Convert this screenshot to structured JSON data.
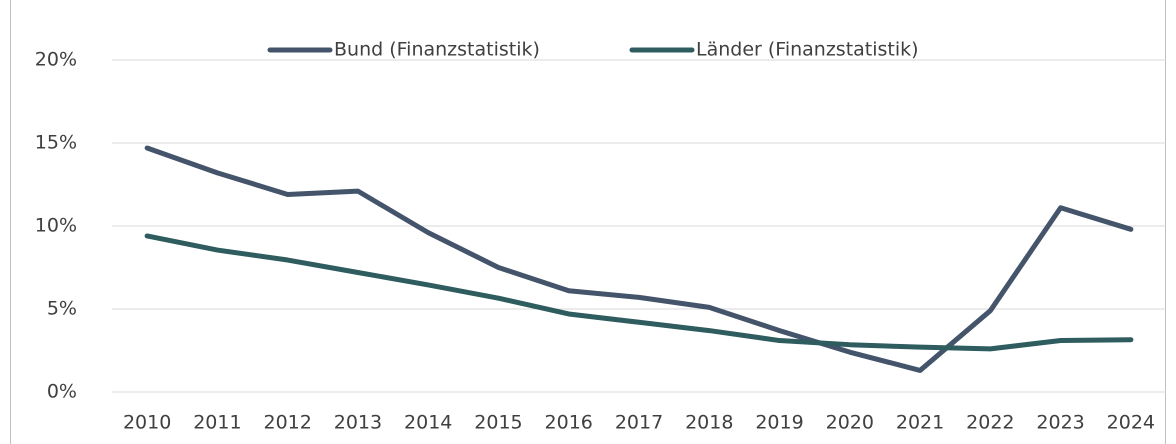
{
  "chart_data": {
    "type": "line",
    "categories": [
      "2010",
      "2011",
      "2012",
      "2013",
      "2014",
      "2015",
      "2016",
      "2017",
      "2018",
      "2019",
      "2020",
      "2021",
      "2022",
      "2023",
      "2024"
    ],
    "series": [
      {
        "name": "Bund (Finanzstatistik)",
        "color": "#44546a",
        "values": [
          14.7,
          13.2,
          11.9,
          12.1,
          9.6,
          7.5,
          6.1,
          5.7,
          5.1,
          3.7,
          2.4,
          1.3,
          4.9,
          11.1,
          9.8
        ]
      },
      {
        "name": "Länder (Finanzstatistik)",
        "color": "#2e5c5f",
        "values": [
          9.4,
          8.55,
          7.95,
          7.2,
          6.45,
          5.65,
          4.7,
          4.2,
          3.7,
          3.1,
          2.85,
          2.7,
          2.6,
          3.1,
          3.15
        ]
      }
    ],
    "ylim": [
      0,
      20
    ],
    "yticks": [
      {
        "value": 0,
        "label": "0%"
      },
      {
        "value": 5,
        "label": "5%"
      },
      {
        "value": 10,
        "label": "10%"
      },
      {
        "value": 15,
        "label": "15%"
      },
      {
        "value": 20,
        "label": "20%"
      }
    ],
    "grid": true,
    "legend": "top"
  }
}
